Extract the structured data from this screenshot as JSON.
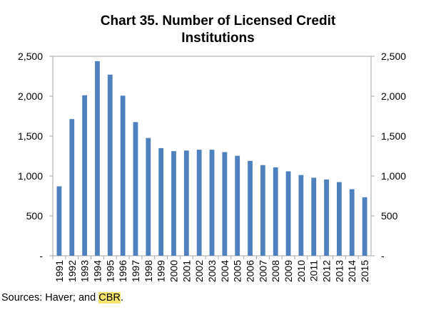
{
  "chart_data": {
    "type": "bar",
    "title_line1": "Chart 35. Number of Licensed Credit",
    "title_line2": "Institutions",
    "categories": [
      "1991",
      "1992",
      "1993",
      "1994",
      "1995",
      "1996",
      "1997",
      "1998",
      "1999",
      "2000",
      "2001",
      "2002",
      "2003",
      "2004",
      "2005",
      "2006",
      "2007",
      "2008",
      "2009",
      "2010",
      "2011",
      "2012",
      "2013",
      "2014",
      "2015"
    ],
    "values": [
      870,
      1713,
      2011,
      2439,
      2270,
      2006,
      1675,
      1476,
      1349,
      1311,
      1319,
      1329,
      1329,
      1299,
      1253,
      1189,
      1136,
      1108,
      1058,
      1012,
      978,
      956,
      923,
      834,
      733
    ],
    "ylim": [
      0,
      2500
    ],
    "yticks": [
      0,
      500,
      1000,
      1500,
      2000,
      2500
    ],
    "ytick_labels": [
      "-",
      "500",
      "1,000",
      "1,500",
      "2,000",
      "2,500"
    ],
    "xlabel": "",
    "ylabel": "",
    "bar_color": "#4e81bd",
    "axis_color": "#a6a6a6"
  },
  "source": {
    "prefix": "Sources: Haver; and ",
    "highlight": "CBR",
    "suffix": "."
  }
}
